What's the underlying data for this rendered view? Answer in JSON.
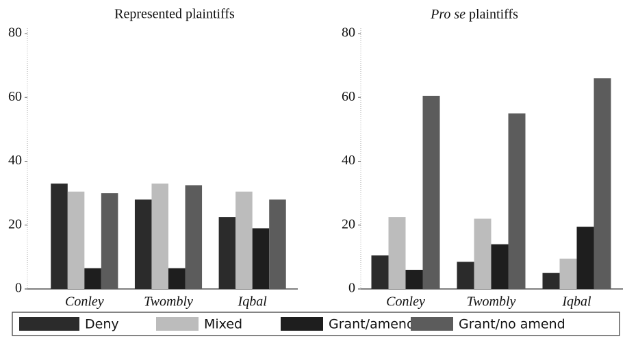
{
  "chart_data": [
    {
      "type": "bar",
      "title": "Represented plaintiffs",
      "categories": [
        "Conley",
        "Twombly",
        "Iqbal"
      ],
      "series": [
        {
          "name": "Deny",
          "color": "#2b2b2b",
          "values": [
            33,
            28,
            22.5
          ]
        },
        {
          "name": "Mixed",
          "color": "#bcbcbc",
          "values": [
            30.5,
            33,
            30.5
          ]
        },
        {
          "name": "Grant/amend",
          "color": "#1e1e1e",
          "values": [
            6.5,
            6.5,
            19
          ]
        },
        {
          "name": "Grant/no amend",
          "color": "#5c5c5c",
          "values": [
            30,
            32.5,
            28
          ]
        }
      ],
      "ylim": [
        0,
        80
      ],
      "yticks": [
        0,
        20,
        40,
        60,
        80
      ]
    },
    {
      "type": "bar",
      "title_emphasis": "Pro se",
      "title": "plaintiffs",
      "categories": [
        "Conley",
        "Twombly",
        "Iqbal"
      ],
      "series": [
        {
          "name": "Deny",
          "color": "#2b2b2b",
          "values": [
            10.5,
            8.5,
            5
          ]
        },
        {
          "name": "Mixed",
          "color": "#bcbcbc",
          "values": [
            22.5,
            22,
            9.5
          ]
        },
        {
          "name": "Grant/amend",
          "color": "#1e1e1e",
          "values": [
            6,
            14,
            19.5
          ]
        },
        {
          "name": "Grant/no amend",
          "color": "#5c5c5c",
          "values": [
            60.5,
            55,
            66
          ]
        }
      ],
      "ylim": [
        0,
        80
      ],
      "yticks": [
        0,
        20,
        40,
        60,
        80
      ]
    }
  ]
}
